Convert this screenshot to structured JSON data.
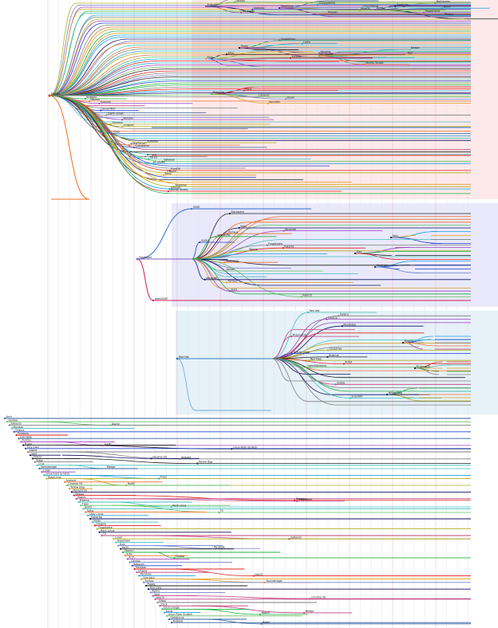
{
  "diagram": {
    "bands": [
      {
        "id": "debian",
        "color": "#fde9e9"
      },
      {
        "id": "slackware",
        "color": "#e9e9fb"
      },
      {
        "id": "redhat",
        "color": "#e6f1f8"
      }
    ],
    "groups": [
      {
        "id": "debian",
        "root_label": "Debian",
        "color": "#e05050"
      },
      {
        "id": "slackware",
        "root_label": "Slackware",
        "color": "#8060c0"
      },
      {
        "id": "suse",
        "root_label": "SUSE",
        "color": "#d07030"
      },
      {
        "id": "redhat",
        "root_label": "Red Hat",
        "color": "#3080c0"
      }
    ],
    "labels": {
      "debian": [
        "Knoppix",
        "Ubuntu",
        "Kubuntu",
        "Xubuntu",
        "Edubuntu",
        "Linux Mint",
        "Mepis",
        "Damn Small",
        "Elive",
        "Kanotix",
        "Sidux",
        "Xandros",
        "Linspire",
        "Freespire",
        "Dreamlinux",
        "Corel",
        "Progeny",
        "Libranet",
        "Storm",
        "Kurumin",
        "gNewSense",
        "Guadalinex",
        "LinEx",
        "Skolelinux",
        "Grml",
        "Morphix",
        "Parsix",
        "Sabayon",
        "64 Studio",
        "SimplyMEPIS",
        "Crunchbang",
        "PureOS",
        "Trisquel",
        "Zorin",
        "Elementary",
        "Deepin",
        "Tails",
        "Kali",
        "Raspbian",
        "Devuan",
        "Ubuntu Studio",
        "Lubuntu",
        "Mythbuntu",
        "Goobuntu",
        "Bodhi",
        "Peppermint",
        "Pinguy",
        "LXLE",
        "Netrunner",
        "Zentyal",
        "Siduction",
        "MX Linux",
        "antiX",
        "Webconverger",
        "Clonezilla",
        "SystemRescue",
        "BackTrack",
        "Bharat OS",
        "Pardus",
        "Tuquito",
        "Huayra"
      ],
      "slackware": [
        "Slackware",
        "SUSE",
        "Zenwalk",
        "Vector",
        "Slax",
        "Salix",
        "Absolute",
        "Porteus",
        "openSUSE",
        "SLED",
        "SLES",
        "Frugalware",
        "KateOS",
        "Wolvix",
        "Austrumi",
        "Bluewhite64",
        "GoboLinux"
      ],
      "redhat": [
        "Red Hat",
        "Fedora",
        "CentOS",
        "Scientific",
        "Mandrake",
        "Mandriva",
        "Mageia",
        "PCLinuxOS",
        "Yellow Dog",
        "Turbolinux",
        "Caldera",
        "Conectiva",
        "Oracle Linux",
        "Asianux",
        "Red Flag",
        "ROSA",
        "OpenMandriva",
        "Unity Linux",
        "Blag",
        "Berry",
        "Korora",
        "Qubes"
      ],
      "independent": [
        "Arch",
        "Gentoo",
        "Sabayon",
        "Manjaro",
        "Chakra",
        "Parabola",
        "Calculate",
        "Funtoo",
        "Puppy",
        "Tiny Core",
        "Alpine",
        "Void",
        "NixOS",
        "Slitaz",
        "Crux",
        "Sourcemage",
        "Lunar",
        "Linux From Scratch",
        "GoboLinux",
        "Android",
        "Chrome OS",
        "Yellow Dog",
        "MontaVista",
        "Meego",
        "Moblin",
        "Maemo",
        "Tizen",
        "Bodhi",
        "Solus",
        "Clear Linux",
        "Exherbo",
        "Paldo",
        "Dragora",
        "Frugalware",
        "Rock Linux",
        "T2",
        "Lunar",
        "Hyperbola",
        "Guix",
        "KaOS",
        "Obarun",
        "Artix"
      ]
    }
  }
}
